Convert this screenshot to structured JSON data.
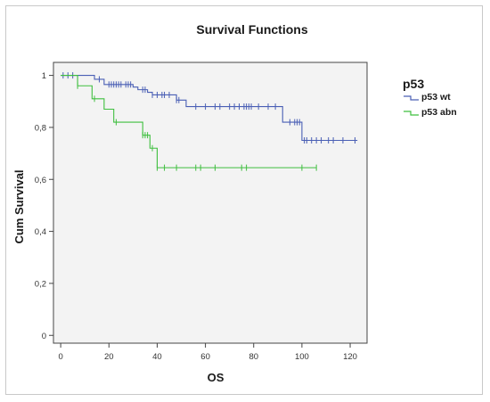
{
  "chart_data": {
    "type": "line",
    "title": "Survival Functions",
    "xlabel": "OS",
    "ylabel": "Cum Survival",
    "xlim": [
      -3,
      127
    ],
    "ylim": [
      -0.03,
      1.05
    ],
    "x_ticks": [
      0,
      20,
      40,
      60,
      80,
      100,
      120
    ],
    "y_ticks": [
      0,
      0.2,
      0.4,
      0.6,
      0.8,
      1
    ],
    "x_tick_labels": [
      "0",
      "20",
      "40",
      "60",
      "80",
      "100",
      "120"
    ],
    "y_tick_labels": [
      "0",
      "0,2",
      "0,4",
      "0,6",
      "0,8",
      "1"
    ],
    "legend": {
      "title": "p53",
      "placement": "right"
    },
    "series": [
      {
        "name": "p53 wt",
        "color": "#4a5fb5",
        "step_x": [
          0,
          14,
          18,
          30,
          32,
          36,
          38,
          48,
          52,
          92,
          96,
          100
        ],
        "step_y": [
          1.0,
          0.985,
          0.965,
          0.955,
          0.945,
          0.935,
          0.925,
          0.905,
          0.88,
          0.82,
          0.82,
          0.75
        ],
        "end_x": 123,
        "censored_x": [
          1,
          3,
          5,
          16,
          20,
          21,
          22,
          23,
          24,
          25,
          27,
          28,
          29,
          34,
          35,
          38,
          40,
          42,
          43,
          45,
          48,
          49,
          56,
          60,
          64,
          66,
          70,
          72,
          74,
          76,
          77,
          78,
          79,
          82,
          86,
          89,
          95,
          97,
          98,
          99,
          101,
          102,
          104,
          106,
          108,
          111,
          113,
          117,
          122
        ]
      },
      {
        "name": "p53 abn",
        "color": "#3fbf3f",
        "step_x": [
          0,
          7,
          13,
          18,
          22,
          34,
          37,
          40
        ],
        "step_y": [
          1.0,
          0.96,
          0.91,
          0.87,
          0.82,
          0.77,
          0.72,
          0.645
        ],
        "end_x": 106,
        "censored_x": [
          7,
          14,
          23,
          34,
          35,
          36,
          38,
          40,
          43,
          48,
          56,
          58,
          64,
          75,
          77,
          100,
          106
        ]
      }
    ]
  }
}
